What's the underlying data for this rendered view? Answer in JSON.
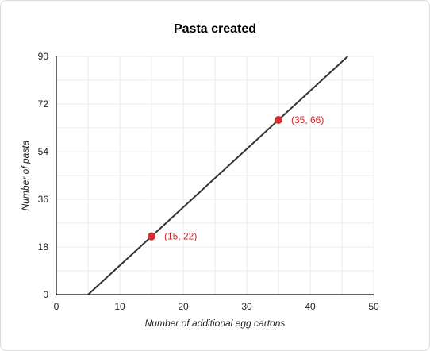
{
  "chart_data": {
    "type": "line",
    "title": "Pasta created",
    "xlabel": "Number of additional egg cartons",
    "ylabel": "Number of pasta",
    "xlim": [
      0,
      50
    ],
    "ylim": [
      0,
      90
    ],
    "x_ticks": [
      0,
      10,
      20,
      30,
      40,
      50
    ],
    "y_ticks": [
      0,
      18,
      36,
      54,
      72,
      90
    ],
    "grid": true,
    "line": {
      "equation": "y = 2.2x - 11",
      "x": [
        5,
        45.909
      ],
      "y": [
        0,
        90
      ],
      "color": "#333333"
    },
    "points": [
      {
        "x": 15,
        "y": 22,
        "label": "(15, 22)"
      },
      {
        "x": 35,
        "y": 66,
        "label": "(35, 66)"
      }
    ],
    "colors": {
      "line": "#333333",
      "points": "#d32f2f",
      "point_labels": "#c62828",
      "grid": "#ebebeb",
      "axis": "#000000"
    }
  }
}
